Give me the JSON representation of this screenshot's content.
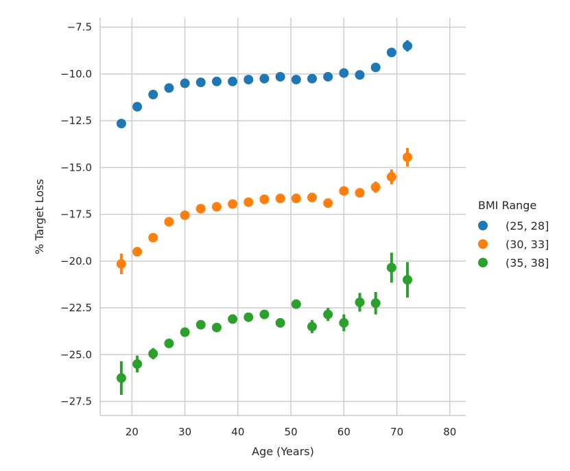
{
  "chart_data": {
    "type": "scatter",
    "title": "",
    "xlabel": "Age (Years)",
    "ylabel": "% Target Loss",
    "xlim": [
      14,
      83
    ],
    "ylim": [
      -28.25,
      -7
    ],
    "xticks": [
      20,
      30,
      40,
      50,
      60,
      70,
      80
    ],
    "yticks": [
      -7.5,
      -10.0,
      -12.5,
      -15.0,
      -17.5,
      -20.0,
      -22.5,
      -25.0,
      -27.5
    ],
    "ytick_labels": [
      "−7.5",
      "−10.0",
      "−12.5",
      "−15.0",
      "−17.5",
      "−20.0",
      "−22.5",
      "−25.0",
      "−27.5"
    ],
    "xtick_labels": [
      "20",
      "30",
      "40",
      "50",
      "60",
      "70",
      "80"
    ],
    "grid": true,
    "legend": {
      "title": "BMI Range",
      "placement": "right"
    },
    "series": [
      {
        "name": "(25, 28]",
        "color": "#1f77b4",
        "x": [
          18,
          21,
          24,
          27,
          30,
          33,
          36,
          39,
          42,
          45,
          48,
          51,
          54,
          57,
          60,
          63,
          66,
          69,
          72
        ],
        "y": [
          -12.65,
          -11.75,
          -11.1,
          -10.75,
          -10.5,
          -10.45,
          -10.4,
          -10.4,
          -10.3,
          -10.25,
          -10.15,
          -10.3,
          -10.25,
          -10.15,
          -9.95,
          -10.05,
          -9.65,
          -8.85,
          -8.5
        ],
        "err": [
          0.22,
          0.1,
          0.08,
          0.07,
          0.07,
          0.07,
          0.07,
          0.07,
          0.07,
          0.07,
          0.07,
          0.07,
          0.07,
          0.07,
          0.1,
          0.1,
          0.15,
          0.22,
          0.3
        ]
      },
      {
        "name": "(30, 33]",
        "color": "#ff7f0e",
        "x": [
          18,
          21,
          24,
          27,
          30,
          33,
          36,
          39,
          42,
          45,
          48,
          51,
          54,
          57,
          60,
          63,
          66,
          69,
          72
        ],
        "y": [
          -20.15,
          -19.5,
          -18.75,
          -17.9,
          -17.55,
          -17.2,
          -17.1,
          -16.95,
          -16.85,
          -16.7,
          -16.65,
          -16.65,
          -16.6,
          -16.9,
          -16.25,
          -16.35,
          -16.05,
          -15.5,
          -14.45
        ],
        "err": [
          0.55,
          0.25,
          0.12,
          0.1,
          0.1,
          0.1,
          0.1,
          0.1,
          0.1,
          0.1,
          0.1,
          0.1,
          0.1,
          0.1,
          0.15,
          0.25,
          0.3,
          0.4,
          0.5
        ]
      },
      {
        "name": "(35, 38]",
        "color": "#2ca02c",
        "x": [
          18,
          21,
          24,
          27,
          30,
          33,
          36,
          39,
          42,
          45,
          48,
          51,
          54,
          57,
          60,
          63,
          66,
          69,
          72
        ],
        "y": [
          -26.25,
          -25.5,
          -24.95,
          -24.4,
          -23.8,
          -23.4,
          -23.55,
          -23.1,
          -23.0,
          -22.85,
          -23.3,
          -22.3,
          -23.5,
          -22.85,
          -23.3,
          -22.2,
          -22.25,
          -20.35,
          -21.0
        ],
        "err": [
          0.9,
          0.45,
          0.3,
          0.2,
          0.15,
          0.15,
          0.15,
          0.15,
          0.15,
          0.15,
          0.25,
          0.25,
          0.35,
          0.35,
          0.45,
          0.5,
          0.6,
          0.8,
          0.95
        ]
      }
    ]
  }
}
